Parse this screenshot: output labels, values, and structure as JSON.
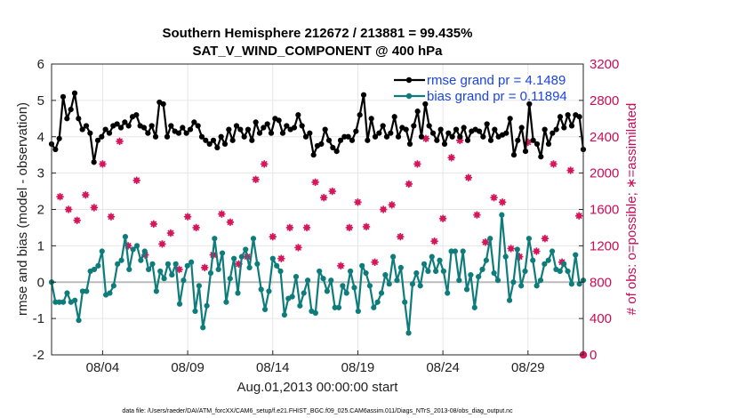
{
  "chart_data": {
    "type": "line",
    "title_line1": "Southern Hemisphere 212672 / 213881 = 99.435%",
    "title_line2": "SAT_V_WIND_COMPONENT @ 400 hPa",
    "xlabel": "Aug.01,2013 00:00:00 start",
    "ylabel_left": "rmse and bias (model - observation)",
    "ylabel_right": "# of obs: o=possible; ∗=assimilated",
    "footer": "data file: /Users/raeder/DAI/ATM_forcXX/CAM6_setup/f.e21.FHIST_BGC.f09_025.CAM6assim.011/Diags_NTrS_2013-08/obs_diag_output.nc",
    "xlim": [
      0.5,
      31.75
    ],
    "ylim_left": [
      -2,
      6
    ],
    "ylim_right": [
      0,
      3200
    ],
    "x_ticks": [
      3.5,
      8.5,
      13.5,
      18.5,
      23.5,
      28.5
    ],
    "x_tick_labels": [
      "08/04",
      "08/09",
      "08/14",
      "08/19",
      "08/24",
      "08/29"
    ],
    "y_ticks_left": [
      -2,
      -1,
      0,
      1,
      2,
      3,
      4,
      5,
      6
    ],
    "y_ticks_right": [
      0,
      400,
      800,
      1200,
      1600,
      2000,
      2400,
      2800,
      3200
    ],
    "colors": {
      "rmse": "#000000",
      "bias": "#0e7c7b",
      "obs": "#d6175c",
      "zero": "#bbbbbb",
      "legend_text": "#1a44e6",
      "right_axis": "#cc0a55"
    },
    "series": [
      {
        "name": "rmse grand pr = 4.1489",
        "axis": "left",
        "values": [
          3.8,
          3.65,
          3.95,
          5.1,
          4.5,
          4.75,
          5.2,
          4.5,
          4.2,
          4.3,
          4.1,
          3.3,
          3.9,
          4.0,
          4.2,
          4.1,
          4.3,
          4.35,
          4.25,
          4.4,
          4.3,
          4.55,
          4.6,
          4.3,
          4.25,
          4.1,
          4.3,
          4.0,
          4.95,
          4.9,
          4.0,
          4.3,
          4.15,
          4.1,
          4.25,
          4.1,
          4.2,
          4.4,
          4.3,
          4.0,
          3.9,
          3.8,
          3.9,
          3.7,
          4.0,
          3.8,
          4.2,
          3.9,
          4.3,
          4.2,
          4.0,
          4.2,
          3.9,
          4.4,
          4.1,
          4.25,
          4.35,
          4.1,
          4.5,
          4.45,
          4.1,
          4.3,
          4.2,
          4.25,
          4.6,
          4.3,
          4.0,
          4.1,
          3.5,
          3.75,
          3.8,
          4.2,
          3.9,
          3.7,
          3.6,
          3.9,
          4.0,
          4.0,
          3.9,
          4.15,
          4.6,
          5.15,
          3.9,
          4.5,
          4.0,
          4.1,
          4.3,
          4.0,
          4.1,
          4.55,
          4.0,
          4.25,
          4.2,
          3.8,
          4.3,
          4.7,
          4.0,
          4.9,
          4.3,
          4.1,
          3.9,
          4.2,
          3.8,
          4.1,
          4.0,
          4.2,
          4.0,
          4.25,
          3.9,
          4.15,
          4.2,
          4.15,
          4.0,
          4.35,
          3.9,
          4.2,
          4.0,
          4.05,
          4.1,
          4.5,
          3.5,
          3.9,
          4.25,
          3.6,
          4.9,
          3.9,
          3.8,
          3.45,
          4.2,
          3.8,
          4.1,
          4.2,
          4.55,
          4.25,
          4.6,
          4.3,
          4.6,
          4.55,
          3.65
        ]
      },
      {
        "name": "bias grand pr = 0.11894",
        "axis": "left",
        "values": [
          0.0,
          -0.55,
          -0.55,
          -0.55,
          -0.3,
          -0.55,
          -0.5,
          -1.05,
          -0.25,
          -0.25,
          0.3,
          0.35,
          0.45,
          0.85,
          -0.35,
          -0.3,
          -0.1,
          0.5,
          0.6,
          1.25,
          0.35,
          0.9,
          1.0,
          0.6,
          0.85,
          0.35,
          0.5,
          -0.25,
          0.3,
          0.1,
          0.5,
          0.2,
          0.5,
          -0.6,
          0.05,
          0.45,
          0.55,
          -0.8,
          -0.1,
          -1.25,
          -0.65,
          0.25,
          1.2,
          0.35,
          0.8,
          -0.55,
          0.1,
          0.65,
          -0.3,
          0.7,
          0.9,
          0.4,
          1.2,
          0.5,
          -0.2,
          -0.75,
          -0.25,
          0.65,
          0.45,
          0.3,
          -0.9,
          -0.45,
          -0.4,
          0.15,
          -0.65,
          -0.3,
          0.05,
          -0.8,
          -0.85,
          0.3,
          0.1,
          -0.25,
          0.05,
          -0.7,
          -0.7,
          -0.1,
          -0.3,
          0.3,
          -0.15,
          -0.8,
          0.45,
          0.25,
          -0.1,
          -0.7,
          -0.55,
          -0.3,
          0.2,
          -0.05,
          0.7,
          0.05,
          0.4,
          -0.55,
          -1.4,
          -0.05,
          0.25,
          -0.1,
          0.5,
          0.3,
          0.7,
          0.3,
          0.6,
          0.3,
          -0.3,
          0.85,
          0.85,
          0.05,
          0.85,
          -0.2,
          0.2,
          -0.7,
          0.15,
          0.35,
          0.6,
          1.2,
          0.25,
          0.05,
          1.85,
          0.7,
          -0.5,
          0.0,
          0.9,
          -0.1,
          0.3,
          1.2,
          0.6,
          -0.1,
          0.05,
          0.5,
          0.6,
          0.85,
          0.35,
          0.3,
          0.5,
          0.3,
          -0.05,
          0.75,
          -0.05,
          0.05
        ]
      }
    ],
    "obs_assimilated": {
      "name": "assimilated obs count",
      "axis": "right",
      "x": [
        1.0,
        1.5,
        2.0,
        2.5,
        3.0,
        3.5,
        4.0,
        4.5,
        5.0,
        5.5,
        6.0,
        6.5,
        7.0,
        7.5,
        8.0,
        8.5,
        9.0,
        9.5,
        10.0,
        10.5,
        11.0,
        11.5,
        12.0,
        12.5,
        13.0,
        13.5,
        14.0,
        14.5,
        15.0,
        15.5,
        16.0,
        16.5,
        17.0,
        17.5,
        18.0,
        18.5,
        19.0,
        19.5,
        20.0,
        20.5,
        21.0,
        21.5,
        22.0,
        22.5,
        23.0,
        23.5,
        24.0,
        24.5,
        25.0,
        25.5,
        26.0,
        26.5,
        27.0,
        27.5,
        28.0,
        28.5,
        29.0,
        29.5,
        30.0,
        30.5,
        31.0,
        31.5
      ],
      "values": [
        1740,
        1600,
        1480,
        1760,
        1620,
        2100,
        1520,
        2350,
        1200,
        1920,
        1100,
        1440,
        1220,
        1340,
        940,
        1520,
        1400,
        960,
        1100,
        1550,
        1460,
        1000,
        1080,
        1930,
        2100,
        1300,
        1060,
        1400,
        1180,
        1400,
        1900,
        1730,
        1800,
        980,
        1400,
        1680,
        1410,
        1020,
        1600,
        1650,
        1300,
        1880,
        2100,
        2380,
        1250,
        1500,
        2170,
        2360,
        1950,
        1540,
        1240,
        1730,
        1680,
        1170,
        1080,
        2340,
        1140,
        1280,
        2100,
        1020,
        2030,
        1530
      ],
      "possible_extra": [
        0,
        2600
      ]
    },
    "legend": [
      "rmse grand pr = 4.1489",
      "bias grand pr = 0.11894"
    ]
  }
}
